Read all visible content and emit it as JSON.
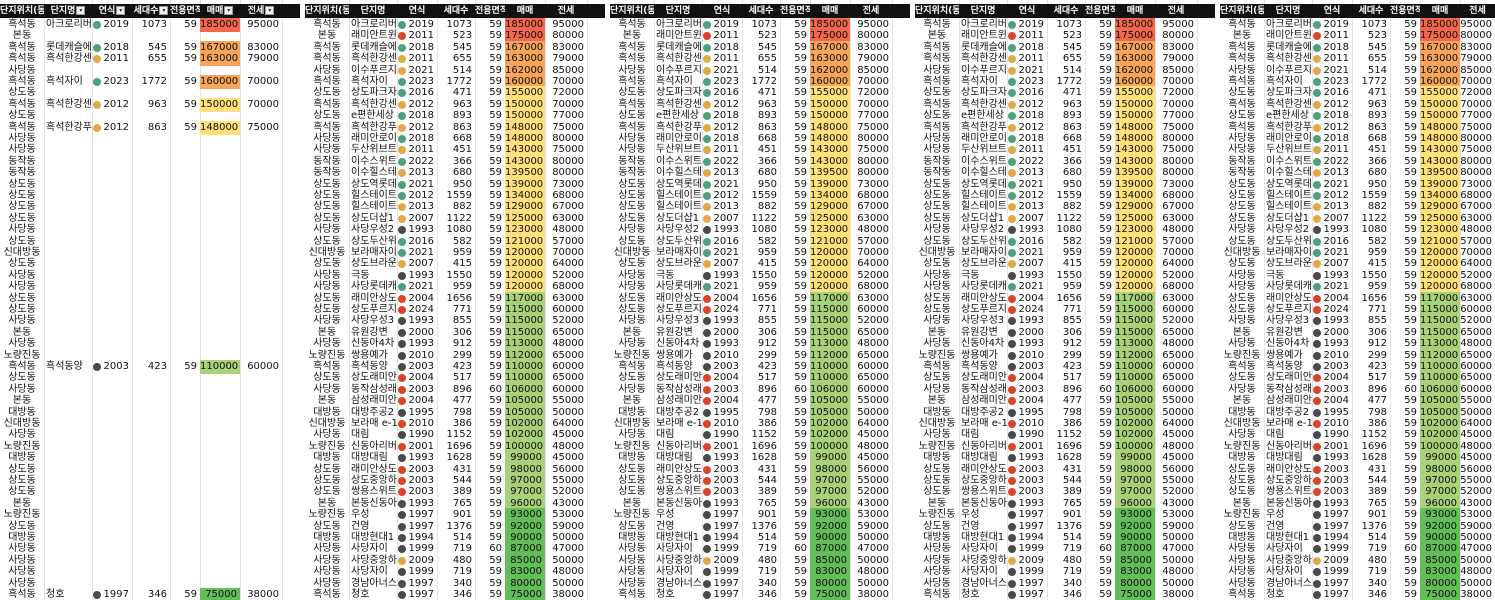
{
  "header": {
    "cols": [
      "단지위치(동)",
      "단지명",
      "연식",
      "세대수",
      "전용면적",
      "매매",
      "전세"
    ]
  },
  "dot_colors": {
    "green": "#4ea07e",
    "orange": "#e0a94a",
    "red": "#d9452b",
    "dark": "#4a4a4a"
  },
  "value_colors": {
    "max": "#f1684d",
    "high": "#f6a55a",
    "mid": "#ffe07a",
    "low": "#a8d27a",
    "min": "#63be5a"
  },
  "rows": [
    {
      "dong": "흑석동",
      "name": "아크로리버",
      "dot": "green",
      "year": "2019",
      "units": "1073",
      "area": "59",
      "price": "185000",
      "jeonse": "95000"
    },
    {
      "dong": "본동",
      "name": "래미안트윈",
      "dot": "red",
      "year": "2011",
      "units": "523",
      "area": "59",
      "price": "175000",
      "jeonse": "80000"
    },
    {
      "dong": "흑석동",
      "name": "롯데캐슬에",
      "dot": "green",
      "year": "2018",
      "units": "545",
      "area": "59",
      "price": "167000",
      "jeonse": "83000"
    },
    {
      "dong": "흑석동",
      "name": "흑석한강센",
      "dot": "orange",
      "year": "2011",
      "units": "655",
      "area": "59",
      "price": "163000",
      "jeonse": "79000"
    },
    {
      "dong": "사당동",
      "name": "이수푸르지",
      "dot": "orange",
      "year": "2021",
      "units": "514",
      "area": "59",
      "price": "162000",
      "jeonse": "85000"
    },
    {
      "dong": "흑석동",
      "name": "흑석자이",
      "dot": "green",
      "year": "2023",
      "units": "1772",
      "area": "59",
      "price": "160000",
      "jeonse": "70000"
    },
    {
      "dong": "상도동",
      "name": "상도파크자",
      "dot": "green",
      "year": "2016",
      "units": "471",
      "area": "59",
      "price": "155000",
      "jeonse": "72000"
    },
    {
      "dong": "흑석동",
      "name": "흑석한강센",
      "dot": "orange",
      "year": "2012",
      "units": "963",
      "area": "59",
      "price": "150000",
      "jeonse": "70000"
    },
    {
      "dong": "상도동",
      "name": "e편한세상",
      "dot": "green",
      "year": "2018",
      "units": "893",
      "area": "59",
      "price": "150000",
      "jeonse": "77000"
    },
    {
      "dong": "흑석동",
      "name": "흑석한강푸",
      "dot": "orange",
      "year": "2012",
      "units": "863",
      "area": "59",
      "price": "148000",
      "jeonse": "75000"
    },
    {
      "dong": "사당동",
      "name": "래미안로이",
      "dot": "green",
      "year": "2018",
      "units": "668",
      "area": "59",
      "price": "148000",
      "jeonse": "80000"
    },
    {
      "dong": "사당동",
      "name": "두산위브트",
      "dot": "orange",
      "year": "2011",
      "units": "451",
      "area": "59",
      "price": "143000",
      "jeonse": "75000"
    },
    {
      "dong": "동작동",
      "name": "이수스위트",
      "dot": "green",
      "year": "2022",
      "units": "366",
      "area": "59",
      "price": "143000",
      "jeonse": "80000"
    },
    {
      "dong": "동작동",
      "name": "이수힐스테",
      "dot": "orange",
      "year": "2013",
      "units": "680",
      "area": "59",
      "price": "139500",
      "jeonse": "80000"
    },
    {
      "dong": "상도동",
      "name": "상도역롯데",
      "dot": "green",
      "year": "2021",
      "units": "950",
      "area": "59",
      "price": "139000",
      "jeonse": "73000"
    },
    {
      "dong": "상도동",
      "name": "힐스테이트",
      "dot": "green",
      "year": "2012",
      "units": "1559",
      "area": "59",
      "price": "134000",
      "jeonse": "68000"
    },
    {
      "dong": "상도동",
      "name": "힐스테이트",
      "dot": "orange",
      "year": "2013",
      "units": "882",
      "area": "59",
      "price": "129000",
      "jeonse": "67000"
    },
    {
      "dong": "상도동",
      "name": "상도더샵1",
      "dot": "orange",
      "year": "2007",
      "units": "1122",
      "area": "59",
      "price": "125000",
      "jeonse": "63000"
    },
    {
      "dong": "사당동",
      "name": "사당우성2",
      "dot": "dark",
      "year": "1993",
      "units": "1080",
      "area": "59",
      "price": "123000",
      "jeonse": "48000"
    },
    {
      "dong": "상도동",
      "name": "상도두산위",
      "dot": "green",
      "year": "2016",
      "units": "582",
      "area": "59",
      "price": "121000",
      "jeonse": "57000"
    },
    {
      "dong": "신대방동",
      "name": "보라매자이",
      "dot": "green",
      "year": "2021",
      "units": "959",
      "area": "59",
      "price": "120000",
      "jeonse": "70000"
    },
    {
      "dong": "상도동",
      "name": "상도브라운",
      "dot": "orange",
      "year": "2007",
      "units": "415",
      "area": "59",
      "price": "120000",
      "jeonse": "64000"
    },
    {
      "dong": "사당동",
      "name": "극동",
      "dot": "dark",
      "year": "1993",
      "units": "1550",
      "area": "59",
      "price": "120000",
      "jeonse": "52000"
    },
    {
      "dong": "사당동",
      "name": "사당롯데캐",
      "dot": "green",
      "year": "2021",
      "units": "959",
      "area": "59",
      "price": "120000",
      "jeonse": "68000"
    },
    {
      "dong": "상도동",
      "name": "래미안상도",
      "dot": "red",
      "year": "2004",
      "units": "1656",
      "area": "59",
      "price": "117000",
      "jeonse": "63000"
    },
    {
      "dong": "상도동",
      "name": "상도푸르지",
      "dot": "red",
      "year": "2024",
      "units": "771",
      "area": "59",
      "price": "115000",
      "jeonse": "60000"
    },
    {
      "dong": "사당동",
      "name": "사당우성3",
      "dot": "dark",
      "year": "1993",
      "units": "855",
      "area": "59",
      "price": "115000",
      "jeonse": "52000"
    },
    {
      "dong": "본동",
      "name": "유원강변",
      "dot": "dark",
      "year": "2000",
      "units": "306",
      "area": "59",
      "price": "115000",
      "jeonse": "65000"
    },
    {
      "dong": "사당동",
      "name": "신동아4차",
      "dot": "dark",
      "year": "1993",
      "units": "912",
      "area": "59",
      "price": "113000",
      "jeonse": "48000"
    },
    {
      "dong": "노량진동",
      "name": "쌍용예가",
      "dot": "dark",
      "year": "2010",
      "units": "299",
      "area": "59",
      "price": "112000",
      "jeonse": "65000"
    },
    {
      "dong": "흑석동",
      "name": "흑석동양",
      "dot": "dark",
      "year": "2003",
      "units": "423",
      "area": "59",
      "price": "110000",
      "jeonse": "60000"
    },
    {
      "dong": "상도동",
      "name": "상도래미안",
      "dot": "red",
      "year": "2004",
      "units": "517",
      "area": "59",
      "price": "110000",
      "jeonse": "65000"
    },
    {
      "dong": "사당동",
      "name": "동작삼성래",
      "dot": "red",
      "year": "2003",
      "units": "896",
      "area": "60",
      "price": "106000",
      "jeonse": "60000"
    },
    {
      "dong": "본동",
      "name": "삼성래미안",
      "dot": "red",
      "year": "2004",
      "units": "477",
      "area": "59",
      "price": "105000",
      "jeonse": "55000"
    },
    {
      "dong": "대방동",
      "name": "대방주공2",
      "dot": "dark",
      "year": "1995",
      "units": "798",
      "area": "59",
      "price": "105000",
      "jeonse": "50000"
    },
    {
      "dong": "신대방동",
      "name": "보라매 e-1",
      "dot": "red",
      "year": "2010",
      "units": "386",
      "area": "59",
      "price": "102000",
      "jeonse": "64000"
    },
    {
      "dong": "사당동",
      "name": "대림",
      "dot": "dark",
      "year": "1990",
      "units": "1152",
      "area": "59",
      "price": "102000",
      "jeonse": "45000"
    },
    {
      "dong": "노량진동",
      "name": "신동아리버",
      "dot": "red",
      "year": "2001",
      "units": "1696",
      "area": "59",
      "price": "100000",
      "jeonse": "48000"
    },
    {
      "dong": "대방동",
      "name": "대방대림",
      "dot": "dark",
      "year": "1993",
      "units": "1628",
      "area": "59",
      "price": "99000",
      "jeonse": "45000"
    },
    {
      "dong": "상도동",
      "name": "래미안상도",
      "dot": "red",
      "year": "2003",
      "units": "431",
      "area": "59",
      "price": "98000",
      "jeonse": "56000"
    },
    {
      "dong": "상도동",
      "name": "상도중앙하",
      "dot": "red",
      "year": "2003",
      "units": "544",
      "area": "59",
      "price": "97000",
      "jeonse": "55000"
    },
    {
      "dong": "상도동",
      "name": "쌍용스위트",
      "dot": "red",
      "year": "2003",
      "units": "389",
      "area": "59",
      "price": "97000",
      "jeonse": "52000"
    },
    {
      "dong": "본동",
      "name": "본동신동아",
      "dot": "dark",
      "year": "1993",
      "units": "765",
      "area": "59",
      "price": "96000",
      "jeonse": "43000"
    },
    {
      "dong": "노량진동",
      "name": "우성",
      "dot": "dark",
      "year": "1997",
      "units": "901",
      "area": "59",
      "price": "93000",
      "jeonse": "53000"
    },
    {
      "dong": "상도동",
      "name": "건영",
      "dot": "dark",
      "year": "1997",
      "units": "1376",
      "area": "59",
      "price": "92000",
      "jeonse": "59000"
    },
    {
      "dong": "대방동",
      "name": "대방현대1",
      "dot": "dark",
      "year": "1994",
      "units": "514",
      "area": "59",
      "price": "90000",
      "jeonse": "50000"
    },
    {
      "dong": "사당동",
      "name": "사당자이",
      "dot": "dark",
      "year": "1999",
      "units": "719",
      "area": "60",
      "price": "87000",
      "jeonse": "47000"
    },
    {
      "dong": "사당동",
      "name": "사당중앙하",
      "dot": "orange",
      "year": "2009",
      "units": "480",
      "area": "59",
      "price": "85000",
      "jeonse": "50000"
    },
    {
      "dong": "사당동",
      "name": "사당자이",
      "dot": "dark",
      "year": "1999",
      "units": "719",
      "area": "59",
      "price": "83000",
      "jeonse": "48000"
    },
    {
      "dong": "사당동",
      "name": "경남아너스",
      "dot": "dark",
      "year": "1997",
      "units": "340",
      "area": "59",
      "price": "80000",
      "jeonse": "50000"
    },
    {
      "dong": "흑석동",
      "name": "청호",
      "dot": "dark",
      "year": "1997",
      "units": "346",
      "area": "59",
      "price": "75000",
      "jeonse": "38000"
    }
  ]
}
